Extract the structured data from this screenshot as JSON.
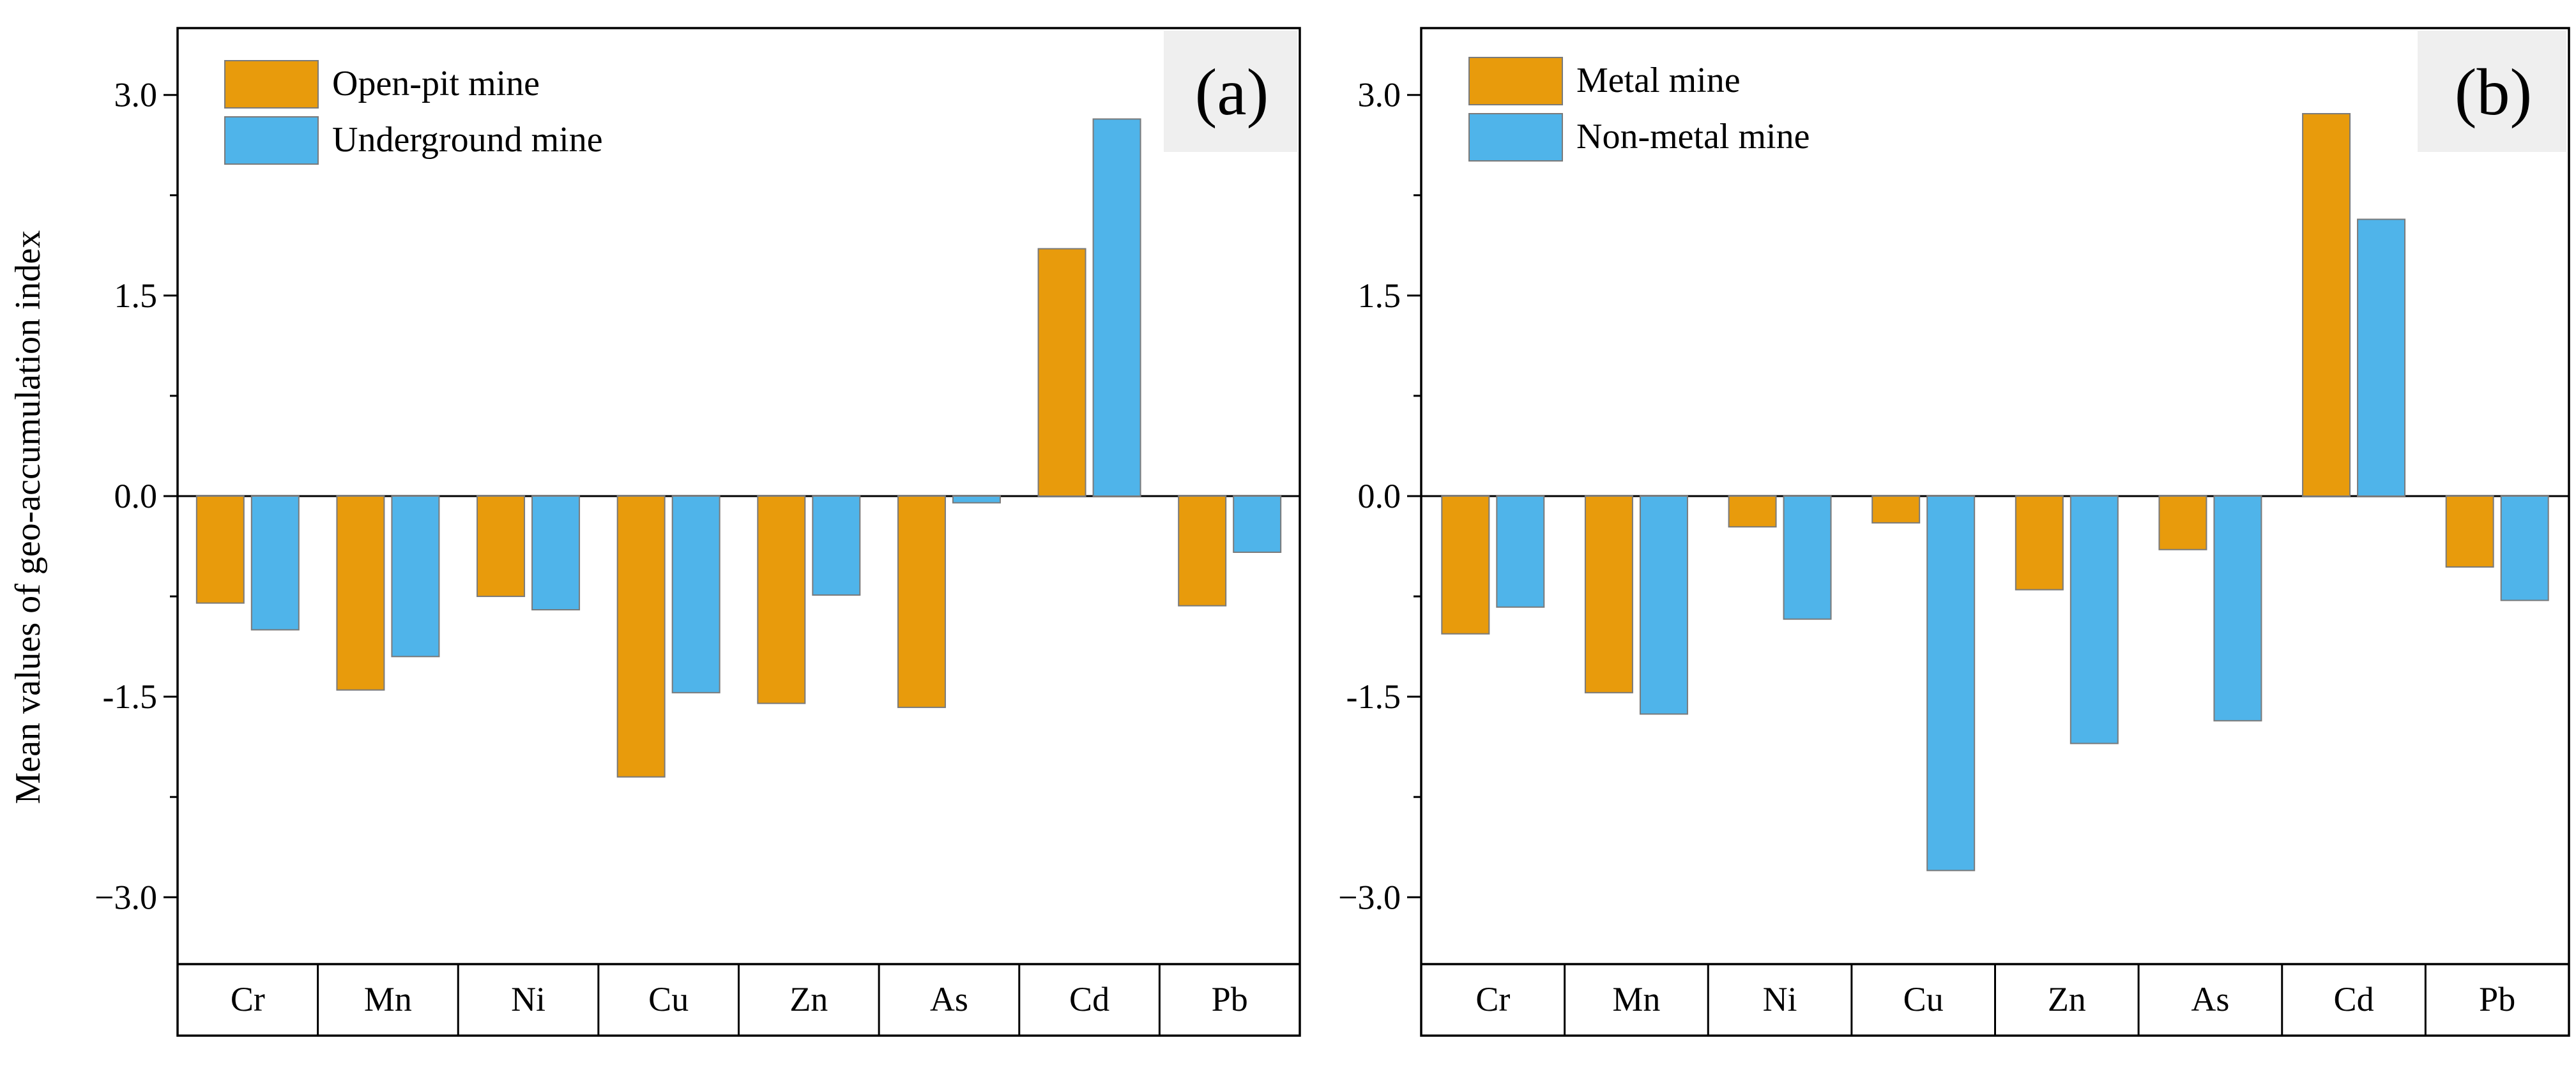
{
  "colors": {
    "series_a": "#E89B0C",
    "series_b": "#4FB4EA",
    "panel_label_bg": "#EFEFEF",
    "bar_stroke": "#7a7a7a"
  },
  "ylabel": "Mean values of geo-accumulation index",
  "chart_data": [
    {
      "type": "bar",
      "panel_label": "(a)",
      "categories": [
        "Cr",
        "Mn",
        "Ni",
        "Cu",
        "Zn",
        "As",
        "Cd",
        "Pb"
      ],
      "series": [
        {
          "name": "Open-pit mine",
          "color": "#E89B0C",
          "values": [
            -0.8,
            -1.45,
            -0.75,
            -2.1,
            -1.55,
            -1.58,
            1.85,
            -0.82
          ]
        },
        {
          "name": "Underground mine",
          "color": "#4FB4EA",
          "values": [
            -1.0,
            -1.2,
            -0.85,
            -1.47,
            -0.74,
            -0.05,
            2.82,
            -0.42
          ]
        }
      ],
      "ylim": [
        -3.5,
        3.5
      ],
      "yticks": [
        -3.0,
        -1.5,
        0.0,
        1.5,
        3.0
      ],
      "ytick_labels": [
        "−3.0",
        "-1.5",
        "0.0",
        "1.5",
        "3.0"
      ],
      "minor_yticks": [
        -2.25,
        -0.75,
        0.75,
        2.25
      ],
      "legend_position": "top-left",
      "ylabel": "Mean values of geo-accumulation index",
      "xlabel": ""
    },
    {
      "type": "bar",
      "panel_label": "(b)",
      "categories": [
        "Cr",
        "Mn",
        "Ni",
        "Cu",
        "Zn",
        "As",
        "Cd",
        "Pb"
      ],
      "series": [
        {
          "name": "Metal mine",
          "color": "#E89B0C",
          "values": [
            -1.03,
            -1.47,
            -0.23,
            -0.2,
            -0.7,
            -0.4,
            2.86,
            -0.53
          ]
        },
        {
          "name": "Non-metal mine",
          "color": "#4FB4EA",
          "values": [
            -0.83,
            -1.63,
            -0.92,
            -2.8,
            -1.85,
            -1.68,
            2.07,
            -0.78
          ]
        }
      ],
      "ylim": [
        -3.5,
        3.5
      ],
      "yticks": [
        -3.0,
        -1.5,
        0.0,
        1.5,
        3.0
      ],
      "ytick_labels": [
        "−3.0",
        "-1.5",
        "0.0",
        "1.5",
        "3.0"
      ],
      "minor_yticks": [
        -2.25,
        -0.75,
        0.75,
        2.25
      ],
      "legend_position": "top-left",
      "xlabel": ""
    }
  ]
}
